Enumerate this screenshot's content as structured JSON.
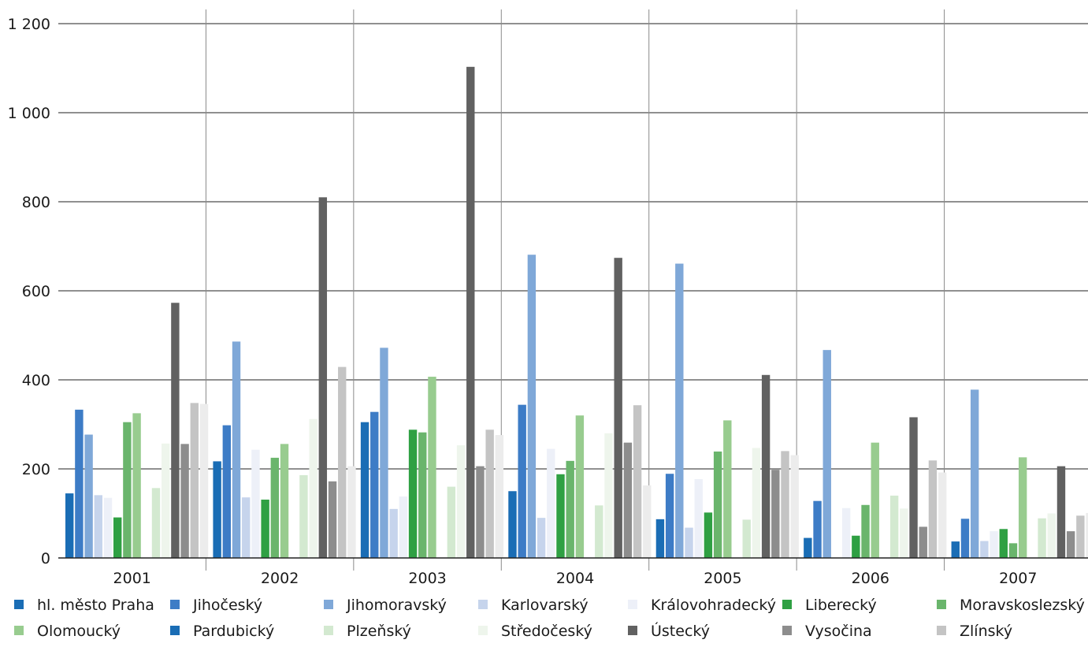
{
  "chart_data": {
    "type": "bar",
    "categories": [
      "2001",
      "2002",
      "2003",
      "2004",
      "2005",
      "2006",
      "2007"
    ],
    "ylim": [
      0,
      1200
    ],
    "yticks": [
      0,
      200,
      400,
      600,
      800,
      1000,
      1200
    ],
    "ytick_labels": [
      "0",
      "200",
      "400",
      "600",
      "800",
      "1 000",
      "1 200"
    ],
    "grid": true,
    "legend_position": "bottom",
    "series": [
      {
        "name": "hl. město Praha",
        "color": "#1a6db5",
        "values": [
          145,
          217,
          305,
          150,
          87,
          45,
          37
        ]
      },
      {
        "name": "Jihočeský",
        "color": "#3d7cc6",
        "values": [
          333,
          298,
          328,
          344,
          189,
          128,
          88
        ]
      },
      {
        "name": "Jihomoravský",
        "color": "#7fa8d8",
        "values": [
          277,
          486,
          472,
          681,
          661,
          467,
          378
        ]
      },
      {
        "name": "Karlovarský",
        "color": "#c6d4ec",
        "values": [
          141,
          136,
          110,
          90,
          68,
          0,
          38
        ]
      },
      {
        "name": "Královohradecký",
        "color": "#edf0f8",
        "values": [
          135,
          243,
          138,
          245,
          177,
          112,
          60
        ]
      },
      {
        "name": "Liberecký",
        "color": "#2fa043",
        "values": [
          91,
          131,
          288,
          188,
          102,
          50,
          65
        ]
      },
      {
        "name": "Moravskoslezský",
        "color": "#6ab56c",
        "values": [
          305,
          225,
          282,
          218,
          239,
          119,
          33
        ]
      },
      {
        "name": "Olomoucký",
        "color": "#98cc8f",
        "values": [
          325,
          256,
          407,
          320,
          309,
          259,
          226
        ]
      },
      {
        "name": "Pardubický",
        "color": "#1a6db5",
        "values": [
          0,
          0,
          0,
          0,
          0,
          0,
          0
        ]
      },
      {
        "name": "Plzeňský",
        "color": "#d3e9d0",
        "values": [
          157,
          186,
          160,
          118,
          86,
          140,
          89
        ]
      },
      {
        "name": "Středočeský",
        "color": "#eef5ec",
        "values": [
          257,
          312,
          253,
          280,
          247,
          111,
          100
        ]
      },
      {
        "name": "Ústecký",
        "color": "#616161",
        "values": [
          573,
          810,
          1103,
          674,
          411,
          316,
          206
        ]
      },
      {
        "name": "Vysočina",
        "color": "#8d8d8d",
        "values": [
          256,
          172,
          206,
          259,
          198,
          70,
          60
        ]
      },
      {
        "name": "Zlínský",
        "color": "#c4c4c4",
        "values": [
          348,
          429,
          288,
          343,
          240,
          219,
          95
        ]
      },
      {
        "name": "",
        "color": "#ececec",
        "values": [
          346,
          206,
          276,
          163,
          231,
          192,
          101
        ]
      }
    ]
  }
}
